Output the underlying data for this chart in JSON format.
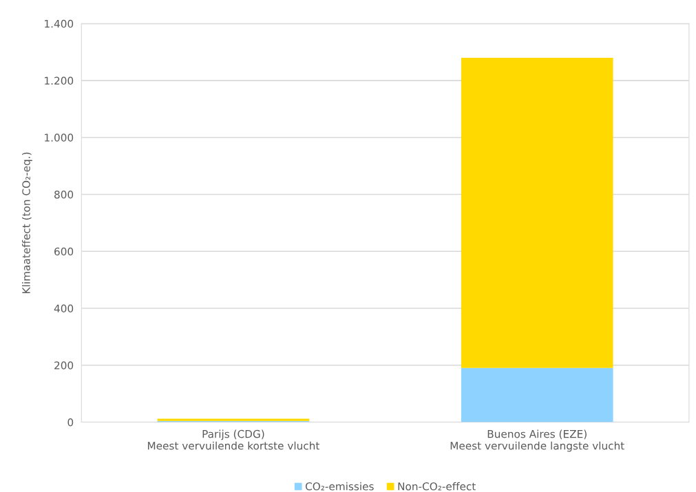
{
  "chart_data": {
    "type": "bar",
    "stacked": true,
    "ylabel": "Klimaateffect (ton CO₂-eq.)",
    "categories": [
      "Parijs (CDG)\nMeest vervuilende kortste vlucht",
      "Buenos Aires (EZE)\nMeest vervuilende langste vlucht"
    ],
    "series": [
      {
        "name": "CO₂-emissies",
        "color": "#8ed2ff",
        "values": [
          4,
          190
        ]
      },
      {
        "name": "Non-CO₂-effect",
        "color": "#ffd900",
        "values": [
          8,
          1090
        ]
      }
    ],
    "ylim": [
      0,
      1400
    ],
    "yticks": [
      0,
      200,
      400,
      600,
      800,
      {
        "value": 1000,
        "label": "1.000"
      },
      {
        "value": 1200,
        "label": "1.200"
      },
      {
        "value": 1400,
        "label": "1.400"
      }
    ],
    "grid": "y",
    "legend": "bottom"
  }
}
